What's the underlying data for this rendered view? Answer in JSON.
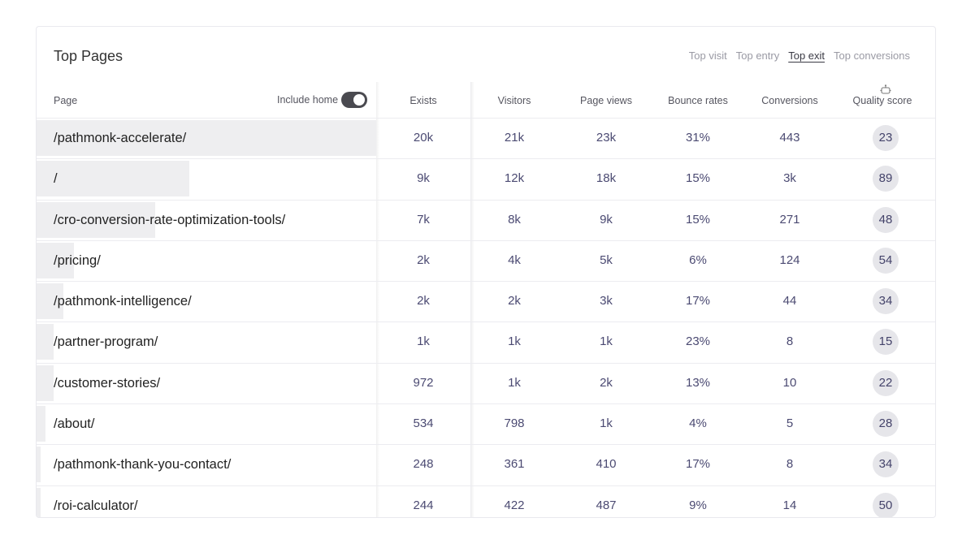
{
  "title": "Top Pages",
  "tabs": [
    {
      "label": "Top visit",
      "active": false
    },
    {
      "label": "Top entry",
      "active": false
    },
    {
      "label": "Top exit",
      "active": true
    },
    {
      "label": "Top conversions",
      "active": false
    }
  ],
  "columns": {
    "page": "Page",
    "include_home": "Include home",
    "exits": "Exists",
    "visitors": "Visitors",
    "page_views": "Page views",
    "bounce_rates": "Bounce rates",
    "conversions": "Conversions",
    "quality_score": "Quality score"
  },
  "include_home_enabled": true,
  "rows": [
    {
      "page": "/pathmonk-accelerate/",
      "exits": "20k",
      "visitors": "21k",
      "page_views": "23k",
      "bounce_rate": "31%",
      "conversions": "443",
      "quality": "23",
      "exit_share": 1.0
    },
    {
      "page": "/",
      "exits": "9k",
      "visitors": "12k",
      "page_views": "18k",
      "bounce_rate": "15%",
      "conversions": "3k",
      "quality": "89",
      "exit_share": 0.45
    },
    {
      "page": "/cro-conversion-rate-optimization-tools/",
      "exits": "7k",
      "visitors": "8k",
      "page_views": "9k",
      "bounce_rate": "15%",
      "conversions": "271",
      "quality": "48",
      "exit_share": 0.35
    },
    {
      "page": "/pricing/",
      "exits": "2k",
      "visitors": "4k",
      "page_views": "5k",
      "bounce_rate": "6%",
      "conversions": "124",
      "quality": "54",
      "exit_share": 0.11
    },
    {
      "page": "/pathmonk-intelligence/",
      "exits": "2k",
      "visitors": "2k",
      "page_views": "3k",
      "bounce_rate": "17%",
      "conversions": "44",
      "quality": "34",
      "exit_share": 0.08
    },
    {
      "page": "/partner-program/",
      "exits": "1k",
      "visitors": "1k",
      "page_views": "1k",
      "bounce_rate": "23%",
      "conversions": "8",
      "quality": "15",
      "exit_share": 0.05
    },
    {
      "page": "/customer-stories/",
      "exits": "972",
      "visitors": "1k",
      "page_views": "2k",
      "bounce_rate": "13%",
      "conversions": "10",
      "quality": "22",
      "exit_share": 0.05
    },
    {
      "page": "/about/",
      "exits": "534",
      "visitors": "798",
      "page_views": "1k",
      "bounce_rate": "4%",
      "conversions": "5",
      "quality": "28",
      "exit_share": 0.027
    },
    {
      "page": "/pathmonk-thank-you-contact/",
      "exits": "248",
      "visitors": "361",
      "page_views": "410",
      "bounce_rate": "17%",
      "conversions": "8",
      "quality": "34",
      "exit_share": 0.012
    },
    {
      "page": "/roi-calculator/",
      "exits": "244",
      "visitors": "422",
      "page_views": "487",
      "bounce_rate": "9%",
      "conversions": "14",
      "quality": "50",
      "exit_share": 0.012
    }
  ]
}
